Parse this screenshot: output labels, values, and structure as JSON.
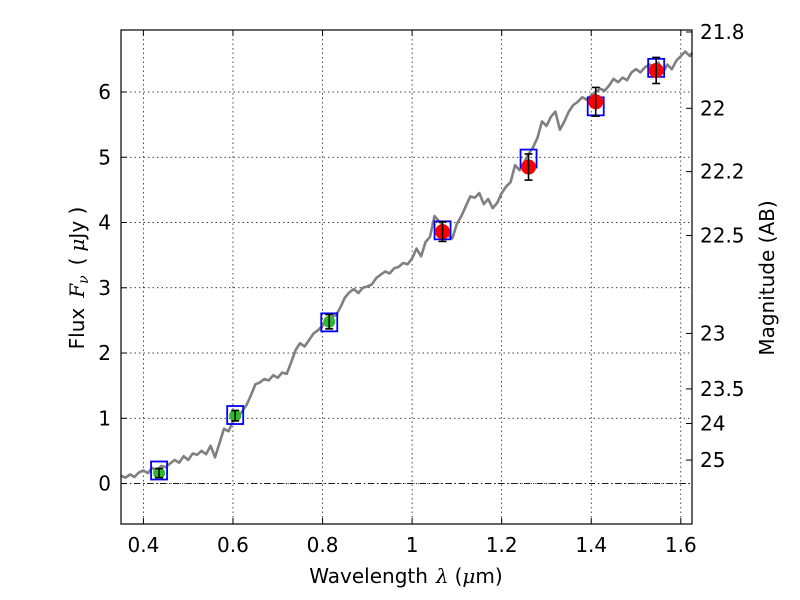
{
  "chart_data": {
    "type": "scatter",
    "xlabel": "Wavelength",
    "xlabel_symbol": "λ",
    "xlabel_unit_open": "(",
    "xlabel_unit_mu": "μ",
    "xlabel_unit_rest": "m)",
    "ylabel": "Flux",
    "ylabel_symbol": "F",
    "ylabel_subscript": "ν",
    "ylabel_unit_open": "(",
    "ylabel_unit_mu": "μ",
    "ylabel_unit_rest": "Jy )",
    "y2label": "Magnitude (AB)",
    "xlim": [
      0.35,
      1.625
    ],
    "ylim": [
      -0.62,
      6.95
    ],
    "x_ticks": [
      0.4,
      0.6,
      0.8,
      1.0,
      1.2,
      1.4,
      1.6
    ],
    "x_tick_labels": [
      "0.4",
      "0.6",
      "0.8",
      "1",
      "1.2",
      "1.4",
      "1.6"
    ],
    "y_ticks": [
      0,
      1,
      2,
      3,
      4,
      5,
      6
    ],
    "y_tick_labels": [
      "0",
      "1",
      "2",
      "3",
      "4",
      "5",
      "6"
    ],
    "y2_ticks": [
      {
        "flux": 6.92,
        "label": "21.8"
      },
      {
        "flux": 5.75,
        "label": "22"
      },
      {
        "flux": 4.78,
        "label": "22.2"
      },
      {
        "flux": 3.8,
        "label": "22.5"
      },
      {
        "flux": 2.3,
        "label": "23"
      },
      {
        "flux": 1.45,
        "label": "23.5"
      },
      {
        "flux": 0.92,
        "label": "24"
      },
      {
        "flux": 0.36,
        "label": "25"
      }
    ],
    "grid": true,
    "zero_line": true,
    "colors": {
      "spectrum": "#808080",
      "model": "#0000ff",
      "optical": "#2eb82e",
      "nir": "#ff0000",
      "errorbar": "#000000"
    },
    "spectrum": [
      [
        0.35,
        0.12
      ],
      [
        0.36,
        0.09
      ],
      [
        0.37,
        0.14
      ],
      [
        0.38,
        0.1
      ],
      [
        0.39,
        0.17
      ],
      [
        0.4,
        0.2
      ],
      [
        0.41,
        0.16
      ],
      [
        0.42,
        0.24
      ],
      [
        0.43,
        0.2
      ],
      [
        0.44,
        0.27
      ],
      [
        0.45,
        0.25
      ],
      [
        0.46,
        0.31
      ],
      [
        0.47,
        0.36
      ],
      [
        0.48,
        0.32
      ],
      [
        0.49,
        0.42
      ],
      [
        0.5,
        0.36
      ],
      [
        0.51,
        0.46
      ],
      [
        0.52,
        0.44
      ],
      [
        0.53,
        0.5
      ],
      [
        0.54,
        0.45
      ],
      [
        0.55,
        0.58
      ],
      [
        0.56,
        0.4
      ],
      [
        0.57,
        0.62
      ],
      [
        0.58,
        0.84
      ],
      [
        0.59,
        0.8
      ],
      [
        0.6,
        0.95
      ],
      [
        0.61,
        1.02
      ],
      [
        0.62,
        1.1
      ],
      [
        0.63,
        1.2
      ],
      [
        0.64,
        1.35
      ],
      [
        0.65,
        1.52
      ],
      [
        0.66,
        1.55
      ],
      [
        0.67,
        1.6
      ],
      [
        0.68,
        1.58
      ],
      [
        0.69,
        1.66
      ],
      [
        0.7,
        1.62
      ],
      [
        0.71,
        1.7
      ],
      [
        0.72,
        1.68
      ],
      [
        0.73,
        1.86
      ],
      [
        0.74,
        2.05
      ],
      [
        0.75,
        2.15
      ],
      [
        0.76,
        2.1
      ],
      [
        0.77,
        2.2
      ],
      [
        0.78,
        2.3
      ],
      [
        0.79,
        2.35
      ],
      [
        0.8,
        2.42
      ],
      [
        0.81,
        2.5
      ],
      [
        0.82,
        2.55
      ],
      [
        0.83,
        2.58
      ],
      [
        0.84,
        2.7
      ],
      [
        0.85,
        2.85
      ],
      [
        0.86,
        2.93
      ],
      [
        0.87,
        2.98
      ],
      [
        0.88,
        2.92
      ],
      [
        0.89,
        3.0
      ],
      [
        0.9,
        3.02
      ],
      [
        0.91,
        3.05
      ],
      [
        0.92,
        3.15
      ],
      [
        0.93,
        3.2
      ],
      [
        0.94,
        3.25
      ],
      [
        0.95,
        3.22
      ],
      [
        0.96,
        3.3
      ],
      [
        0.97,
        3.32
      ],
      [
        0.98,
        3.38
      ],
      [
        0.99,
        3.36
      ],
      [
        1.0,
        3.45
      ],
      [
        1.01,
        3.6
      ],
      [
        1.02,
        3.48
      ],
      [
        1.03,
        3.7
      ],
      [
        1.04,
        3.78
      ],
      [
        1.05,
        4.1
      ],
      [
        1.06,
        4.02
      ],
      [
        1.07,
        3.95
      ],
      [
        1.08,
        3.8
      ],
      [
        1.09,
        3.76
      ],
      [
        1.1,
        3.98
      ],
      [
        1.11,
        4.1
      ],
      [
        1.12,
        4.25
      ],
      [
        1.13,
        4.4
      ],
      [
        1.14,
        4.38
      ],
      [
        1.15,
        4.45
      ],
      [
        1.16,
        4.28
      ],
      [
        1.17,
        4.36
      ],
      [
        1.18,
        4.22
      ],
      [
        1.19,
        4.3
      ],
      [
        1.2,
        4.45
      ],
      [
        1.21,
        4.55
      ],
      [
        1.22,
        4.62
      ],
      [
        1.23,
        4.88
      ],
      [
        1.24,
        4.8
      ],
      [
        1.25,
        4.92
      ],
      [
        1.26,
        5.05
      ],
      [
        1.27,
        5.15
      ],
      [
        1.28,
        5.3
      ],
      [
        1.29,
        5.55
      ],
      [
        1.3,
        5.48
      ],
      [
        1.31,
        5.62
      ],
      [
        1.32,
        5.7
      ],
      [
        1.33,
        5.42
      ],
      [
        1.34,
        5.55
      ],
      [
        1.35,
        5.7
      ],
      [
        1.36,
        5.8
      ],
      [
        1.37,
        5.85
      ],
      [
        1.38,
        5.92
      ],
      [
        1.39,
        5.88
      ],
      [
        1.4,
        5.95
      ],
      [
        1.41,
        6.0
      ],
      [
        1.42,
        6.05
      ],
      [
        1.43,
        6.02
      ],
      [
        1.44,
        6.1
      ],
      [
        1.45,
        6.2
      ],
      [
        1.46,
        6.15
      ],
      [
        1.47,
        6.22
      ],
      [
        1.48,
        6.18
      ],
      [
        1.49,
        6.3
      ],
      [
        1.5,
        6.35
      ],
      [
        1.51,
        6.3
      ],
      [
        1.52,
        6.38
      ],
      [
        1.53,
        6.42
      ],
      [
        1.54,
        6.4
      ],
      [
        1.55,
        6.45
      ],
      [
        1.56,
        6.3
      ],
      [
        1.57,
        6.42
      ],
      [
        1.58,
        6.35
      ],
      [
        1.59,
        6.48
      ],
      [
        1.6,
        6.55
      ],
      [
        1.61,
        6.62
      ],
      [
        1.62,
        6.55
      ],
      [
        1.625,
        6.6
      ]
    ],
    "model_points": [
      {
        "x": 0.435,
        "y": 0.2
      },
      {
        "x": 0.605,
        "y": 1.05
      },
      {
        "x": 0.815,
        "y": 2.47
      },
      {
        "x": 1.068,
        "y": 3.88
      },
      {
        "x": 1.26,
        "y": 4.98
      },
      {
        "x": 1.41,
        "y": 5.78
      },
      {
        "x": 1.545,
        "y": 6.37
      }
    ],
    "observations": [
      {
        "x": 0.435,
        "y": 0.16,
        "err": 0.07,
        "band": "optical"
      },
      {
        "x": 0.605,
        "y": 1.04,
        "err": 0.08,
        "band": "optical"
      },
      {
        "x": 0.815,
        "y": 2.48,
        "err": 0.11,
        "band": "optical"
      },
      {
        "x": 1.068,
        "y": 3.86,
        "err": 0.15,
        "band": "nir"
      },
      {
        "x": 1.26,
        "y": 4.85,
        "err": 0.2,
        "band": "nir"
      },
      {
        "x": 1.41,
        "y": 5.85,
        "err": 0.22,
        "band": "nir"
      },
      {
        "x": 1.545,
        "y": 6.33,
        "err": 0.2,
        "band": "nir"
      }
    ]
  }
}
